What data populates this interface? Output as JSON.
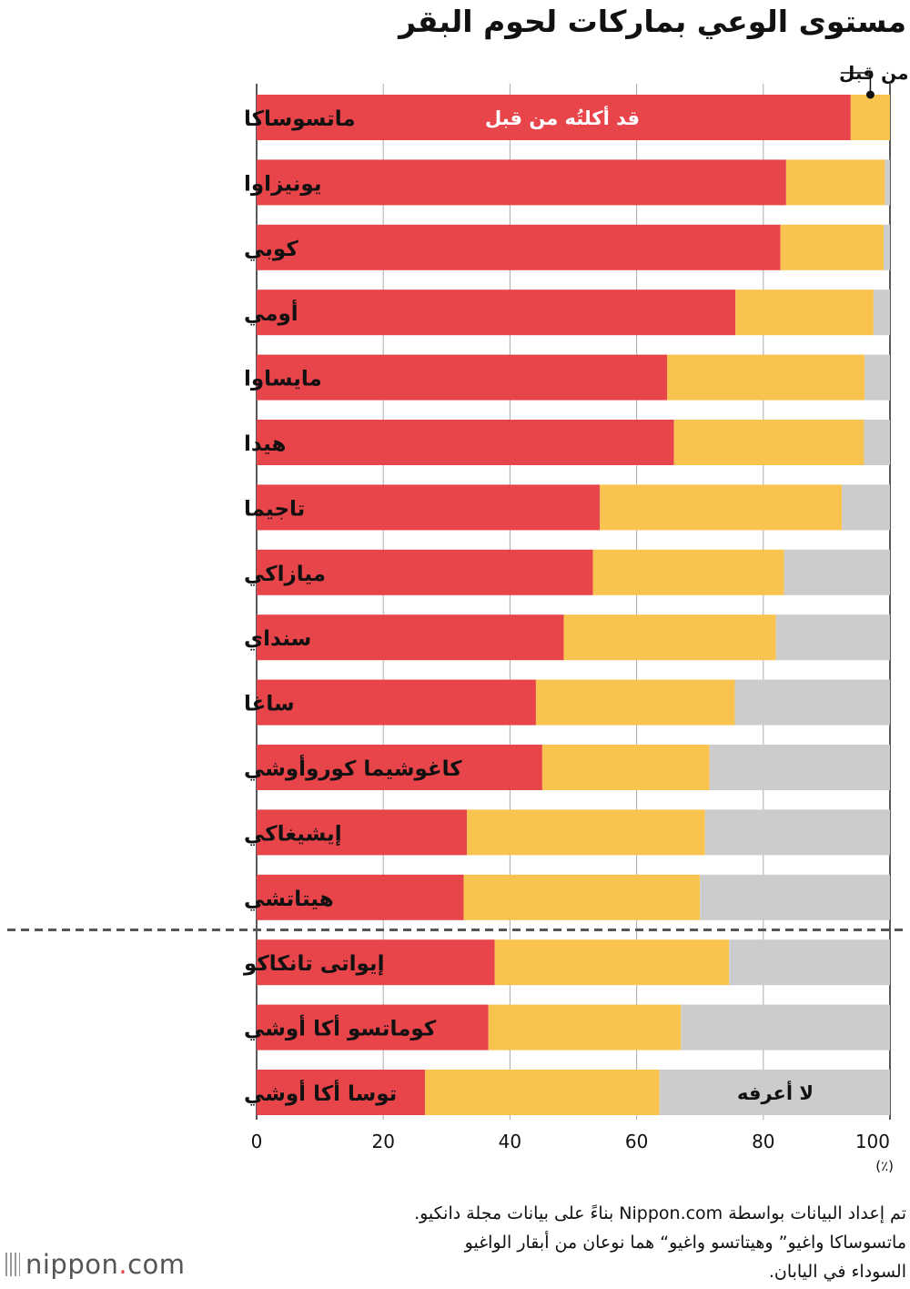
{
  "chart_data": {
    "type": "bar",
    "orientation": "horizontal",
    "stacked": true,
    "title": "مستوى الوعي بماركات لحوم البقر",
    "categories": [
      "ماتسوساكا",
      "يونيزاوا",
      "كوبي",
      "أومي",
      "مايساوا",
      "هيدا",
      "تاجيما",
      "ميازاكي",
      "سنداي",
      "ساغا",
      "كاغوشيما كوروأوشي",
      "إيشيغاكي",
      "هيتاتشي",
      "إيواتى تانكاكو",
      "كوماتسو أكا أوشي",
      "توسا أكا أوشي"
    ],
    "series": [
      {
        "name": "قد أكلتُه من قبل",
        "color": "#e8454b",
        "values": [
          93.8,
          83.6,
          82.7,
          75.6,
          64.8,
          65.9,
          54.2,
          53.1,
          48.5,
          44.1,
          45.1,
          33.2,
          32.7,
          37.6,
          36.6,
          26.6
        ]
      },
      {
        "name": "أعرفه ولكن لم أتناوله من قبل",
        "color": "#f8c44f",
        "values": [
          6.2,
          15.6,
          16.3,
          21.8,
          31.2,
          30.0,
          38.2,
          30.2,
          33.5,
          31.4,
          26.4,
          37.6,
          37.3,
          37.0,
          30.4,
          37.0
        ]
      },
      {
        "name": "لا أعرفه",
        "color": "#cccccc",
        "values": [
          0.0,
          0.8,
          1.0,
          2.6,
          4.0,
          4.1,
          7.6,
          16.7,
          18.0,
          24.5,
          28.5,
          29.2,
          30.0,
          25.4,
          33.0,
          36.4
        ]
      }
    ],
    "group_divider_after_index": 12,
    "xlim": [
      0,
      100
    ],
    "xticks": [
      "0",
      "20",
      "40",
      "60",
      "80",
      "100"
    ],
    "unit_label": "(٪)",
    "grid": true,
    "series_labels_in_bars": true
  },
  "source_lines": [
    "تم إعداد البيانات بواسطة Nippon.com بناءً على بيانات مجلة دانكيو.",
    "ماتسوساكا واغيو” وهيتاتسو واغيو“ هما نوعان من أبقار الواغيو",
    "السوداء في اليابان."
  ],
  "logo": {
    "left": "nippon",
    "dot": ".",
    "right": "com"
  }
}
